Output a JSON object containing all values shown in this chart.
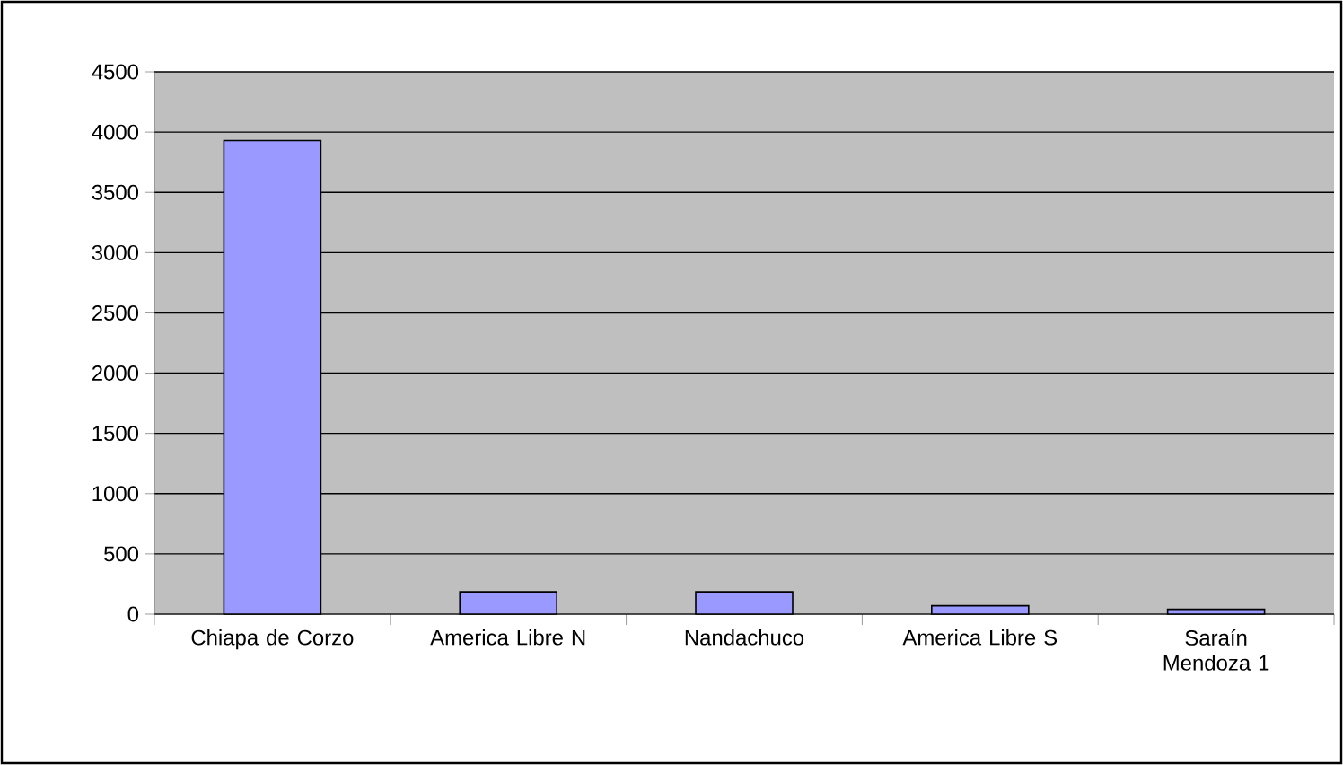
{
  "chart_data": {
    "type": "bar",
    "categories": [
      "Chiapa de Corzo",
      "America Libre N",
      "Nandachuco",
      "America Libre S",
      "Saraín Mendoza 1"
    ],
    "values": [
      3930,
      185,
      185,
      70,
      40
    ],
    "color": "#9999ff",
    "ylim": [
      0,
      4500
    ],
    "yticks": [
      0,
      500,
      1000,
      1500,
      2000,
      2500,
      3000,
      3500,
      4000,
      4500
    ],
    "grid": "y"
  }
}
